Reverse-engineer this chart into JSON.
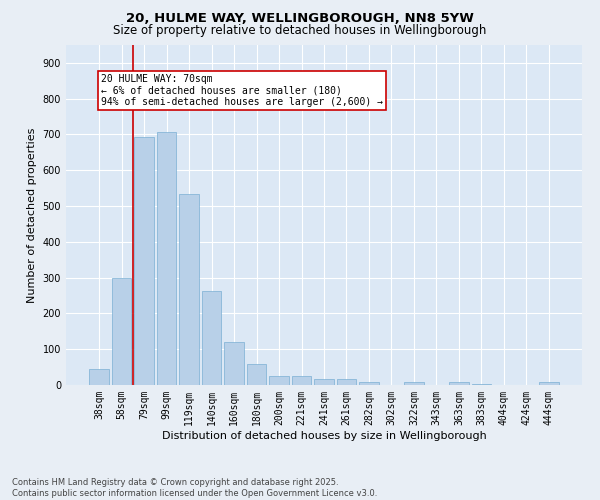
{
  "title_line1": "20, HULME WAY, WELLINGBOROUGH, NN8 5YW",
  "title_line2": "Size of property relative to detached houses in Wellingborough",
  "xlabel": "Distribution of detached houses by size in Wellingborough",
  "ylabel": "Number of detached properties",
  "categories": [
    "38sqm",
    "58sqm",
    "79sqm",
    "99sqm",
    "119sqm",
    "140sqm",
    "160sqm",
    "180sqm",
    "200sqm",
    "221sqm",
    "241sqm",
    "261sqm",
    "282sqm",
    "302sqm",
    "322sqm",
    "343sqm",
    "363sqm",
    "383sqm",
    "404sqm",
    "424sqm",
    "444sqm"
  ],
  "values": [
    45,
    300,
    693,
    707,
    535,
    263,
    120,
    58,
    25,
    25,
    17,
    18,
    8,
    0,
    7,
    0,
    7,
    4,
    0,
    0,
    8
  ],
  "bar_color": "#b8d0e8",
  "bar_edge_color": "#7aafd4",
  "vline_x": 1.5,
  "vline_color": "#cc0000",
  "annotation_text": "20 HULME WAY: 70sqm\n← 6% of detached houses are smaller (180)\n94% of semi-detached houses are larger (2,600) →",
  "annotation_box_color": "#ffffff",
  "annotation_box_edge_color": "#cc0000",
  "ylim": [
    0,
    950
  ],
  "yticks": [
    0,
    100,
    200,
    300,
    400,
    500,
    600,
    700,
    800,
    900
  ],
  "background_color": "#e8eef5",
  "plot_bg_color": "#dce8f5",
  "grid_color": "#ffffff",
  "footnote": "Contains HM Land Registry data © Crown copyright and database right 2025.\nContains public sector information licensed under the Open Government Licence v3.0.",
  "title_fontsize": 9.5,
  "subtitle_fontsize": 8.5,
  "axis_label_fontsize": 8,
  "tick_fontsize": 7,
  "annotation_fontsize": 7,
  "footnote_fontsize": 6
}
